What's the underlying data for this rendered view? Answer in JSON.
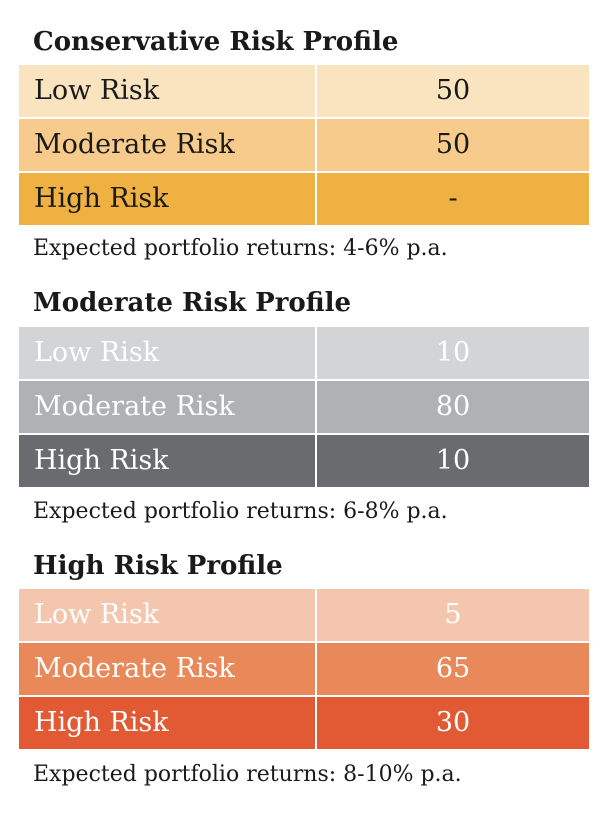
{
  "profiles": [
    {
      "title": "Conservative Risk Profile",
      "rows": [
        {
          "label": "Low Risk",
          "value": "50",
          "bg": "#fae3bf",
          "fg": "#1a1a1a"
        },
        {
          "label": "Moderate Risk",
          "value": "50",
          "bg": "#f6cb8b",
          "fg": "#1a1a1a"
        },
        {
          "label": "High Risk",
          "value": "-",
          "bg": "#f0b143",
          "fg": "#1a1a1a"
        }
      ],
      "returns": "Expected portfolio returns: 4-6% p.a."
    },
    {
      "title": "Moderate Risk Profile",
      "rows": [
        {
          "label": "Low Risk",
          "value": "10",
          "bg": "#d3d4d6",
          "fg": "#ffffff"
        },
        {
          "label": "Moderate Risk",
          "value": "80",
          "bg": "#b0b1b3",
          "fg": "#ffffff"
        },
        {
          "label": "High Risk",
          "value": "10",
          "bg": "#6a6b6e",
          "fg": "#ffffff"
        }
      ],
      "returns": "Expected portfolio returns: 6-8% p.a."
    },
    {
      "title": "High Risk Profile",
      "rows": [
        {
          "label": "Low Risk",
          "value": "5",
          "bg": "#f4c6ad",
          "fg": "#ffffff"
        },
        {
          "label": "Moderate Risk",
          "value": "65",
          "bg": "#e9895a",
          "fg": "#ffffff"
        },
        {
          "label": "High Risk",
          "value": "30",
          "bg": "#e25a33",
          "fg": "#ffffff"
        }
      ],
      "returns": "Expected portfolio returns: 8-10% p.a."
    }
  ]
}
